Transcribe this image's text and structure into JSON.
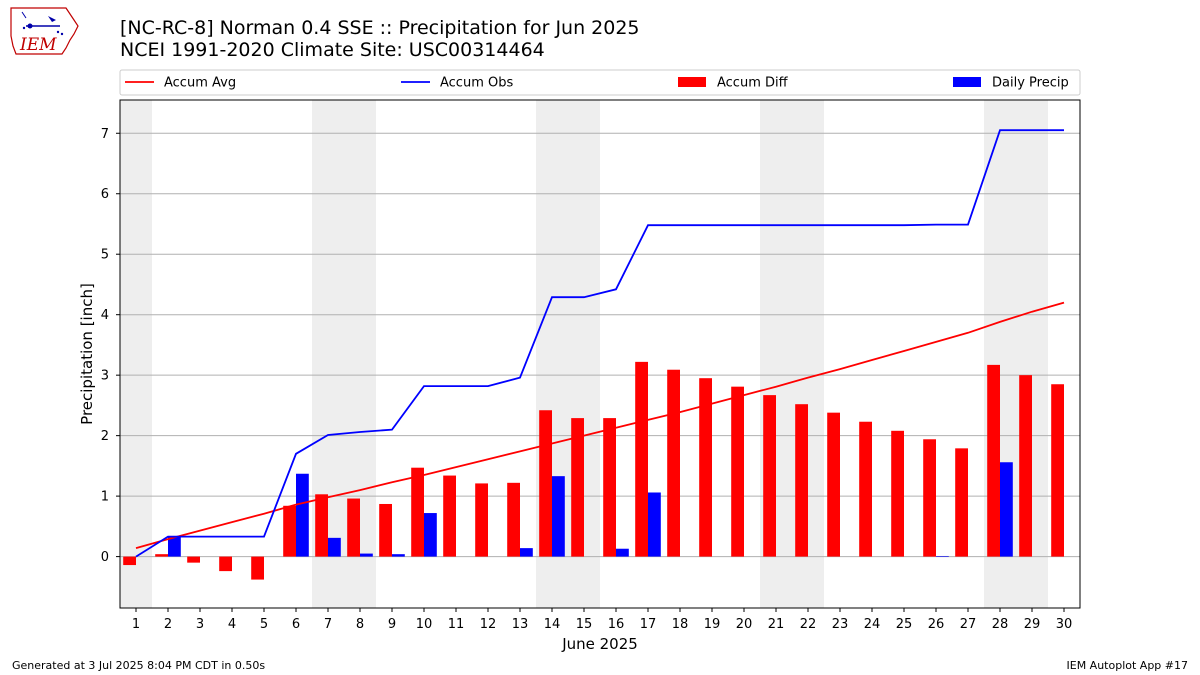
{
  "header": {
    "title_line1": "[NC-RC-8] Norman 0.4 SSE :: Precipitation for Jun 2025",
    "title_line2": "NCEI 1991-2020 Climate Site: USC00314464"
  },
  "logo": {
    "text": "IEM",
    "icon": "iowa-state-outline-logo"
  },
  "footer": {
    "left": "Generated at 3 Jul 2025 8:04 PM CDT in 0.50s",
    "right": "IEM Autoplot App #17"
  },
  "colors": {
    "accum_avg": "#ff0000",
    "accum_obs": "#0000ff",
    "accum_diff": "#ff0000",
    "daily_precip": "#0000ff",
    "weekend_shade": "#eeeeee",
    "grid": "#b0b0b0"
  },
  "chart_data": {
    "type": "bar",
    "xlabel": "June 2025",
    "ylabel": "Precipitation [inch]",
    "ylim": [
      -0.85,
      7.55
    ],
    "xlim": [
      0.5,
      30.5
    ],
    "y_ticks": [
      0,
      1,
      2,
      3,
      4,
      5,
      6,
      7
    ],
    "x": [
      1,
      2,
      3,
      4,
      5,
      6,
      7,
      8,
      9,
      10,
      11,
      12,
      13,
      14,
      15,
      16,
      17,
      18,
      19,
      20,
      21,
      22,
      23,
      24,
      25,
      26,
      27,
      28,
      29,
      30
    ],
    "grid": "horizontal",
    "legend_position": "top",
    "weekend_days": [
      1,
      7,
      8,
      14,
      15,
      21,
      22,
      28,
      29
    ],
    "series": [
      {
        "name": "Accum Avg",
        "type": "line",
        "values": [
          0.14,
          0.29,
          0.43,
          0.57,
          0.71,
          0.86,
          0.98,
          1.1,
          1.23,
          1.35,
          1.48,
          1.61,
          1.74,
          1.87,
          2.0,
          2.13,
          2.26,
          2.39,
          2.53,
          2.67,
          2.81,
          2.96,
          3.1,
          3.25,
          3.4,
          3.55,
          3.7,
          3.88,
          4.05,
          4.2
        ]
      },
      {
        "name": "Accum Obs",
        "type": "line",
        "values": [
          0.0,
          0.33,
          0.33,
          0.33,
          0.33,
          1.7,
          2.01,
          2.06,
          2.1,
          2.82,
          2.82,
          2.82,
          2.96,
          4.29,
          4.29,
          4.42,
          5.48,
          5.48,
          5.48,
          5.48,
          5.48,
          5.48,
          5.48,
          5.48,
          5.48,
          5.49,
          5.49,
          7.05,
          7.05,
          7.05
        ]
      },
      {
        "name": "Accum Diff",
        "type": "bar",
        "values": [
          -0.14,
          0.04,
          -0.1,
          -0.24,
          -0.38,
          0.84,
          1.03,
          0.96,
          0.87,
          1.47,
          1.34,
          1.21,
          1.22,
          2.42,
          2.29,
          2.29,
          3.22,
          3.09,
          2.95,
          2.81,
          2.67,
          2.52,
          2.38,
          2.23,
          2.08,
          1.94,
          1.79,
          3.17,
          3.0,
          2.85
        ]
      },
      {
        "name": "Daily Precip",
        "type": "bar",
        "values": [
          0.0,
          0.33,
          0.0,
          0.0,
          0.0,
          1.37,
          0.31,
          0.05,
          0.04,
          0.72,
          0.0,
          0.0,
          0.14,
          1.33,
          0.0,
          0.13,
          1.06,
          0.0,
          0.0,
          0.0,
          0.0,
          0.0,
          0.0,
          0.0,
          0.0,
          0.01,
          0.0,
          1.56,
          0.0,
          0.0
        ]
      }
    ]
  }
}
